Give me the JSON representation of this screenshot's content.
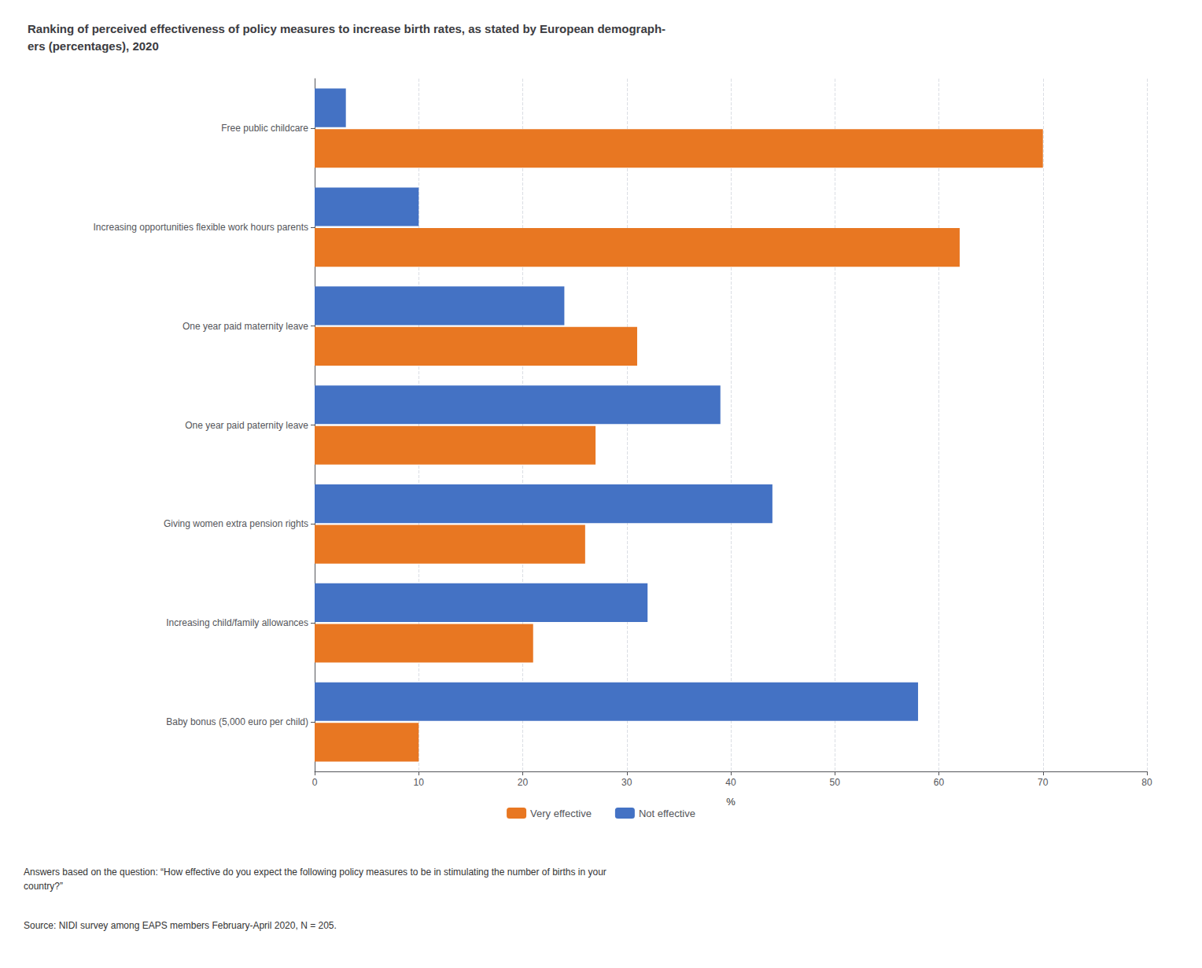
{
  "chart_data": {
    "type": "bar",
    "orientation": "horizontal",
    "title": "Ranking of perceived effectiveness of policy measures to increase birth rates, as stated by European demograph-\ners (percentages), 2020",
    "categories": [
      "Baby bonus (5,000 euro per child)",
      "Increasing child/family allowances",
      "Giving women extra pension rights",
      "One year paid paternity leave",
      "One year paid maternity leave",
      "Increasing opportunities flexible work hours parents",
      "Free public childcare"
    ],
    "series": [
      {
        "name": "Very effective",
        "color": "#E87722",
        "values": [
          10,
          21,
          26,
          27,
          31,
          62,
          70
        ]
      },
      {
        "name": "Not effective",
        "color": "#4472C4",
        "values": [
          58,
          32,
          44,
          39,
          24,
          10,
          3
        ]
      }
    ],
    "xlabel": "%",
    "xlim": [
      0,
      80
    ],
    "xticks": [
      0,
      10,
      20,
      30,
      40,
      50,
      60,
      70,
      80
    ],
    "grid": true,
    "legend": "bottom",
    "annotations": [
      "Answers based on the question: “How effective do you expect the following policy measures to be in stimulating the number of births in your\ncountry?”",
      "Source: NIDI survey among EAPS members February-April 2020, N = 205."
    ]
  }
}
